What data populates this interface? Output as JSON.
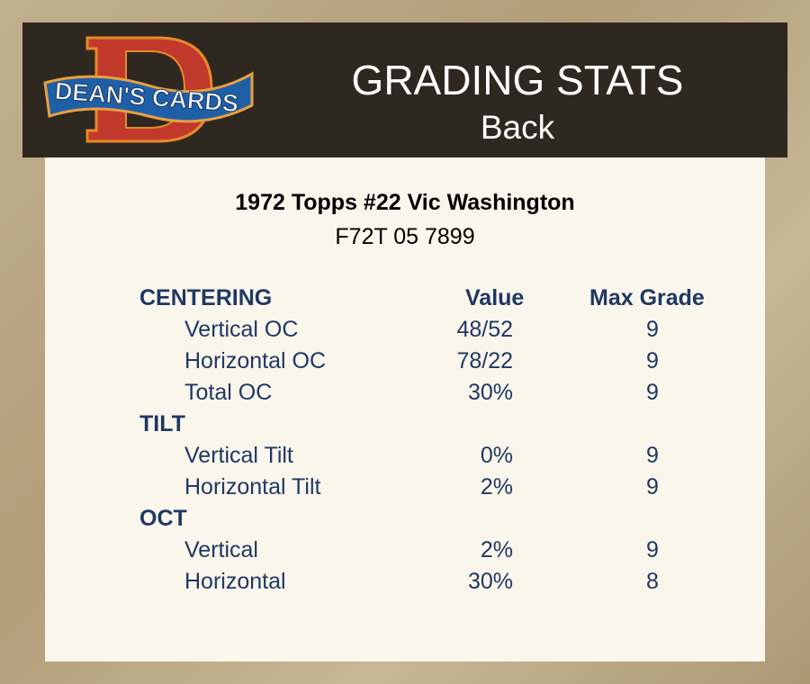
{
  "header": {
    "logo_text": "DEAN'S CARDS",
    "title": "GRADING STATS",
    "subtitle": "Back"
  },
  "card": {
    "name": "1972 Topps #22 Vic Washington",
    "cert": "F72T 05 7899"
  },
  "columns": {
    "value": "Value",
    "max_grade": "Max Grade"
  },
  "sections": [
    {
      "title": "CENTERING",
      "rows": [
        {
          "label": "Vertical OC",
          "value": "48/52",
          "max_grade": "9"
        },
        {
          "label": "Horizontal OC",
          "value": "78/22",
          "max_grade": "9"
        },
        {
          "label": "Total OC",
          "value": "30%",
          "max_grade": "9"
        }
      ]
    },
    {
      "title": "TILT",
      "rows": [
        {
          "label": "Vertical Tilt",
          "value": "0%",
          "max_grade": "9"
        },
        {
          "label": "Horizontal Tilt",
          "value": "2%",
          "max_grade": "9"
        }
      ]
    },
    {
      "title": "OCT",
      "rows": [
        {
          "label": "Vertical",
          "value": "2%",
          "max_grade": "9"
        },
        {
          "label": "Horizontal",
          "value": "30%",
          "max_grade": "8"
        }
      ]
    }
  ]
}
